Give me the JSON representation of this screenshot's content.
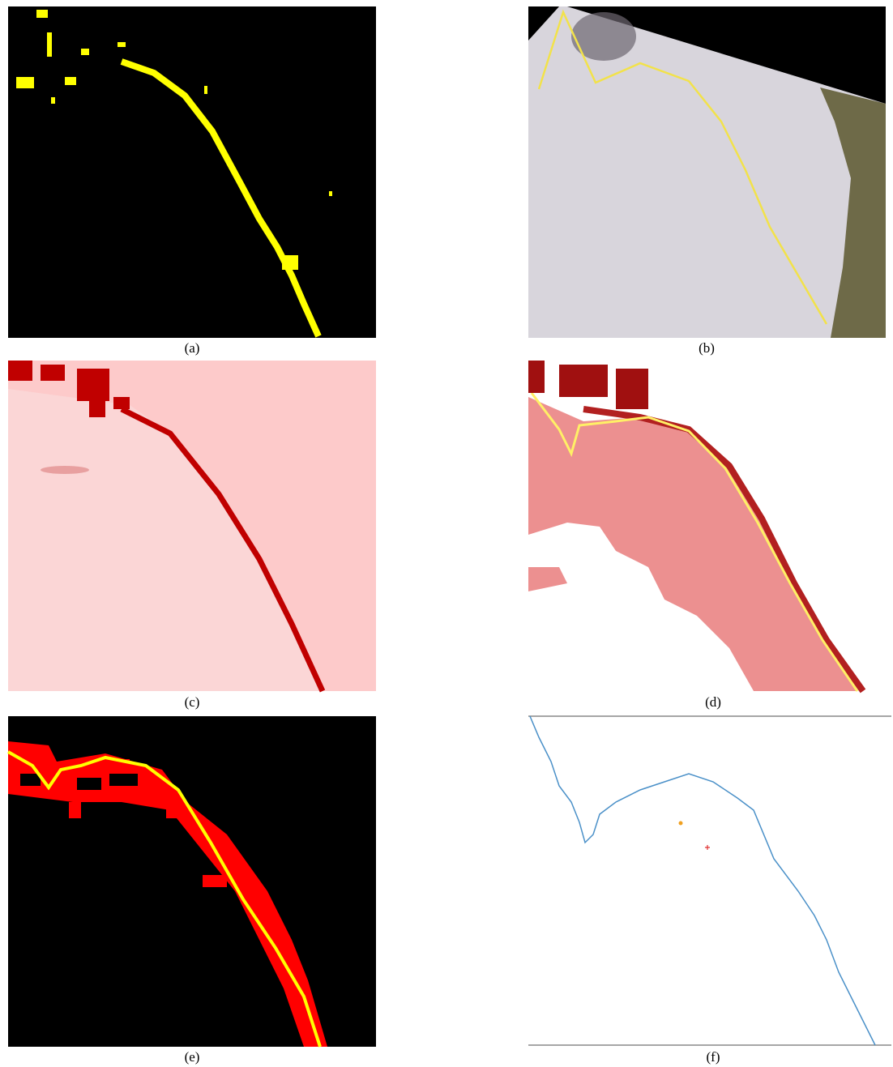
{
  "figure": {
    "panels": [
      {
        "caption": "(a)"
      },
      {
        "caption": "(b)"
      },
      {
        "caption": "(c)"
      },
      {
        "caption": "(d)"
      },
      {
        "caption": "(e)"
      },
      {
        "caption": "(f)"
      }
    ]
  }
}
